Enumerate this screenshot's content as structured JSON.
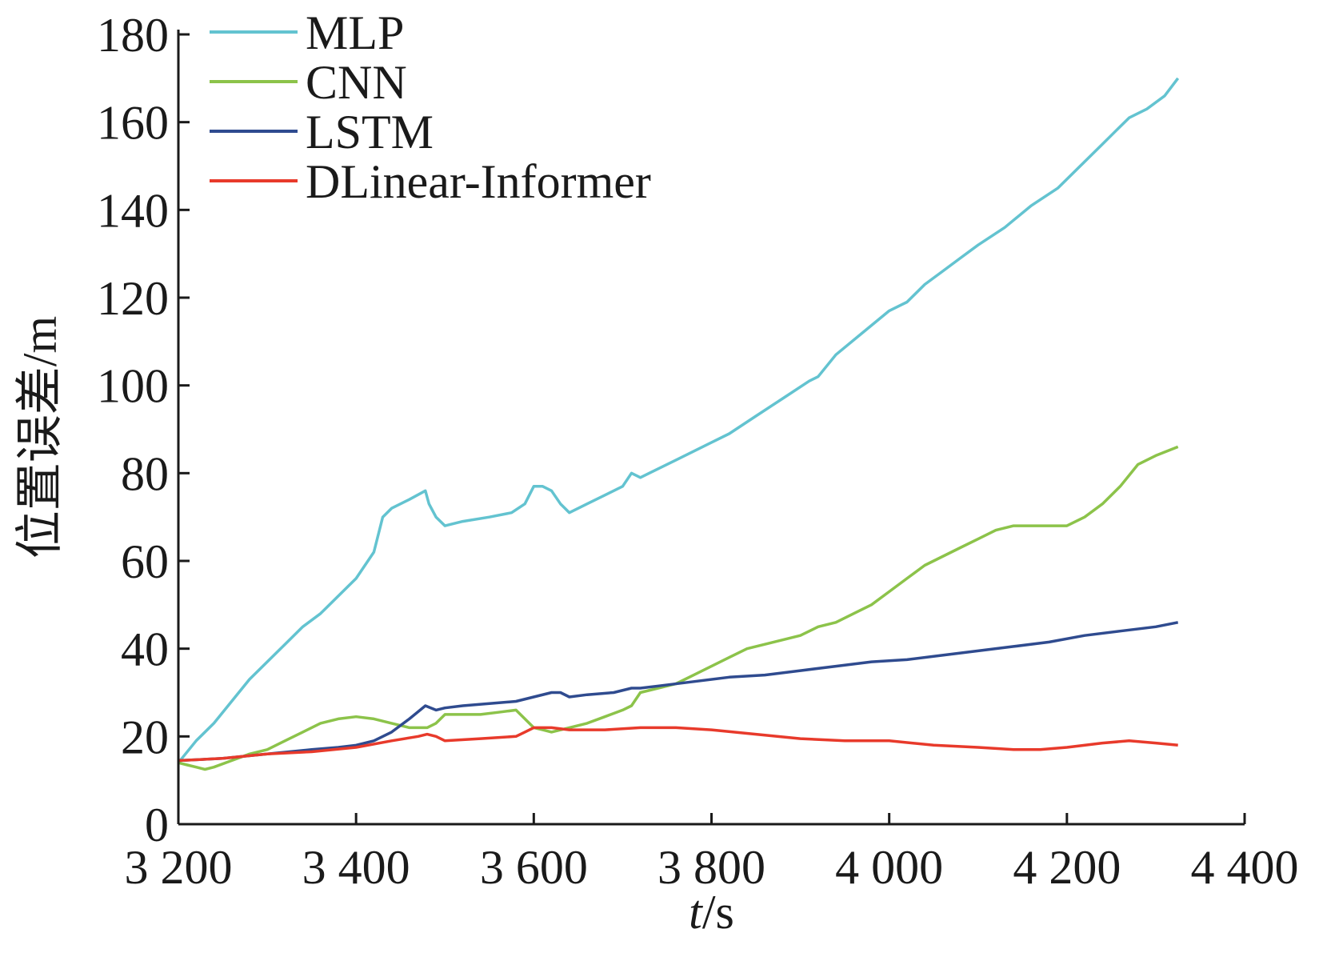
{
  "chart_data": {
    "type": "line",
    "title": "",
    "xlabel_var": "t",
    "xlabel_unit": "/s",
    "ylabel": "位置误差/m",
    "xlim": [
      3200,
      4400
    ],
    "ylim": [
      0,
      180
    ],
    "xticks": [
      3200,
      3400,
      3600,
      3800,
      4000,
      4200,
      4400
    ],
    "xtick_labels": [
      "3 200",
      "3 400",
      "3 600",
      "3 800",
      "4 000",
      "4 200",
      "4 400"
    ],
    "yticks": [
      0,
      20,
      40,
      60,
      80,
      100,
      120,
      140,
      160,
      180
    ],
    "ytick_labels": [
      "0",
      "20",
      "40",
      "60",
      "80",
      "100",
      "120",
      "140",
      "160",
      "180"
    ],
    "grid": false,
    "legend_position": "top-left",
    "series": [
      {
        "name": "MLP",
        "color": "#63c3d0",
        "x": [
          3200,
          3220,
          3240,
          3260,
          3280,
          3300,
          3320,
          3340,
          3360,
          3380,
          3400,
          3420,
          3430,
          3440,
          3460,
          3478,
          3482,
          3490,
          3500,
          3520,
          3550,
          3575,
          3590,
          3600,
          3610,
          3620,
          3630,
          3640,
          3660,
          3680,
          3700,
          3710,
          3720,
          3730,
          3760,
          3790,
          3820,
          3850,
          3880,
          3910,
          3920,
          3940,
          3970,
          4000,
          4020,
          4040,
          4060,
          4080,
          4100,
          4130,
          4160,
          4190,
          4210,
          4240,
          4260,
          4270,
          4290,
          4310,
          4325
        ],
        "y": [
          14,
          19,
          23,
          28,
          33,
          37,
          41,
          45,
          48,
          52,
          56,
          62,
          70,
          72,
          74,
          76,
          73,
          70,
          68,
          69,
          70,
          71,
          73,
          77,
          77,
          76,
          73,
          71,
          73,
          75,
          77,
          80,
          79,
          80,
          83,
          86,
          89,
          93,
          97,
          101,
          102,
          107,
          112,
          117,
          119,
          123,
          126,
          129,
          132,
          136,
          141,
          145,
          149,
          155,
          159,
          161,
          163,
          166,
          170
        ]
      },
      {
        "name": "CNN",
        "color": "#8cc34a",
        "x": [
          3200,
          3210,
          3220,
          3230,
          3240,
          3260,
          3280,
          3300,
          3320,
          3340,
          3360,
          3380,
          3400,
          3420,
          3440,
          3460,
          3480,
          3490,
          3500,
          3520,
          3540,
          3560,
          3580,
          3590,
          3600,
          3610,
          3620,
          3640,
          3660,
          3680,
          3700,
          3710,
          3720,
          3740,
          3760,
          3780,
          3800,
          3820,
          3840,
          3860,
          3880,
          3900,
          3920,
          3940,
          3960,
          3980,
          4000,
          4020,
          4040,
          4060,
          4080,
          4100,
          4120,
          4140,
          4160,
          4180,
          4200,
          4220,
          4240,
          4260,
          4280,
          4300,
          4325
        ],
        "y": [
          14,
          13.5,
          13,
          12.5,
          13,
          14.5,
          16,
          17,
          19,
          21,
          23,
          24,
          24.5,
          24,
          23,
          22,
          22,
          23,
          25,
          25,
          25,
          25.5,
          26,
          24,
          22,
          21.5,
          21,
          22,
          23,
          24.5,
          26,
          27,
          30,
          31,
          32,
          34,
          36,
          38,
          40,
          41,
          42,
          43,
          45,
          46,
          48,
          50,
          53,
          56,
          59,
          61,
          63,
          65,
          67,
          68,
          68,
          68,
          68,
          70,
          73,
          77,
          82,
          84,
          86
        ]
      },
      {
        "name": "LSTM",
        "color": "#2f4b8f",
        "x": [
          3200,
          3250,
          3300,
          3350,
          3380,
          3400,
          3420,
          3440,
          3460,
          3478,
          3490,
          3500,
          3520,
          3550,
          3580,
          3600,
          3620,
          3630,
          3640,
          3660,
          3690,
          3710,
          3720,
          3740,
          3780,
          3820,
          3860,
          3900,
          3940,
          3980,
          4020,
          4060,
          4100,
          4140,
          4180,
          4220,
          4260,
          4300,
          4325
        ],
        "y": [
          14.5,
          15,
          16,
          17,
          17.5,
          18,
          19,
          21,
          24,
          27,
          26,
          26.5,
          27,
          27.5,
          28,
          29,
          30,
          30,
          29,
          29.5,
          30,
          31,
          31,
          31.5,
          32.5,
          33.5,
          34,
          35,
          36,
          37,
          37.5,
          38.5,
          39.5,
          40.5,
          41.5,
          43,
          44,
          45,
          46
        ]
      },
      {
        "name": "DLinear-Informer",
        "color": "#e83a2b",
        "x": [
          3200,
          3250,
          3300,
          3350,
          3400,
          3440,
          3470,
          3480,
          3490,
          3500,
          3540,
          3580,
          3590,
          3600,
          3620,
          3640,
          3680,
          3720,
          3760,
          3800,
          3850,
          3900,
          3950,
          4000,
          4050,
          4100,
          4140,
          4170,
          4200,
          4240,
          4270,
          4300,
          4325
        ],
        "y": [
          14.5,
          15,
          16,
          16.5,
          17.5,
          19,
          20,
          20.5,
          20,
          19,
          19.5,
          20,
          21,
          22,
          22,
          21.5,
          21.5,
          22,
          22,
          21.5,
          20.5,
          19.5,
          19,
          19,
          18,
          17.5,
          17,
          17,
          17.5,
          18.5,
          19,
          18.5,
          18
        ]
      }
    ]
  }
}
